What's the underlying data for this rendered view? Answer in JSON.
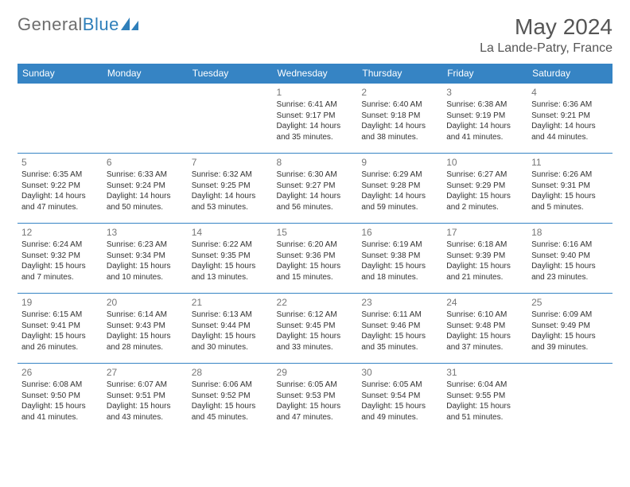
{
  "brand": {
    "part1": "General",
    "part2": "Blue"
  },
  "title": "May 2024",
  "location": "La Lande-Patry, France",
  "colors": {
    "header_bg": "#3684c4",
    "header_text": "#ffffff",
    "border": "#3684c4",
    "brand_gray": "#6d6d6d",
    "brand_blue": "#2f7fba",
    "text": "#333333",
    "title_color": "#555555"
  },
  "dayHeaders": [
    "Sunday",
    "Monday",
    "Tuesday",
    "Wednesday",
    "Thursday",
    "Friday",
    "Saturday"
  ],
  "weeks": [
    [
      null,
      null,
      null,
      {
        "n": "1",
        "sr": "6:41 AM",
        "ss": "9:17 PM",
        "dl": "14 hours and 35 minutes."
      },
      {
        "n": "2",
        "sr": "6:40 AM",
        "ss": "9:18 PM",
        "dl": "14 hours and 38 minutes."
      },
      {
        "n": "3",
        "sr": "6:38 AM",
        "ss": "9:19 PM",
        "dl": "14 hours and 41 minutes."
      },
      {
        "n": "4",
        "sr": "6:36 AM",
        "ss": "9:21 PM",
        "dl": "14 hours and 44 minutes."
      }
    ],
    [
      {
        "n": "5",
        "sr": "6:35 AM",
        "ss": "9:22 PM",
        "dl": "14 hours and 47 minutes."
      },
      {
        "n": "6",
        "sr": "6:33 AM",
        "ss": "9:24 PM",
        "dl": "14 hours and 50 minutes."
      },
      {
        "n": "7",
        "sr": "6:32 AM",
        "ss": "9:25 PM",
        "dl": "14 hours and 53 minutes."
      },
      {
        "n": "8",
        "sr": "6:30 AM",
        "ss": "9:27 PM",
        "dl": "14 hours and 56 minutes."
      },
      {
        "n": "9",
        "sr": "6:29 AM",
        "ss": "9:28 PM",
        "dl": "14 hours and 59 minutes."
      },
      {
        "n": "10",
        "sr": "6:27 AM",
        "ss": "9:29 PM",
        "dl": "15 hours and 2 minutes."
      },
      {
        "n": "11",
        "sr": "6:26 AM",
        "ss": "9:31 PM",
        "dl": "15 hours and 5 minutes."
      }
    ],
    [
      {
        "n": "12",
        "sr": "6:24 AM",
        "ss": "9:32 PM",
        "dl": "15 hours and 7 minutes."
      },
      {
        "n": "13",
        "sr": "6:23 AM",
        "ss": "9:34 PM",
        "dl": "15 hours and 10 minutes."
      },
      {
        "n": "14",
        "sr": "6:22 AM",
        "ss": "9:35 PM",
        "dl": "15 hours and 13 minutes."
      },
      {
        "n": "15",
        "sr": "6:20 AM",
        "ss": "9:36 PM",
        "dl": "15 hours and 15 minutes."
      },
      {
        "n": "16",
        "sr": "6:19 AM",
        "ss": "9:38 PM",
        "dl": "15 hours and 18 minutes."
      },
      {
        "n": "17",
        "sr": "6:18 AM",
        "ss": "9:39 PM",
        "dl": "15 hours and 21 minutes."
      },
      {
        "n": "18",
        "sr": "6:16 AM",
        "ss": "9:40 PM",
        "dl": "15 hours and 23 minutes."
      }
    ],
    [
      {
        "n": "19",
        "sr": "6:15 AM",
        "ss": "9:41 PM",
        "dl": "15 hours and 26 minutes."
      },
      {
        "n": "20",
        "sr": "6:14 AM",
        "ss": "9:43 PM",
        "dl": "15 hours and 28 minutes."
      },
      {
        "n": "21",
        "sr": "6:13 AM",
        "ss": "9:44 PM",
        "dl": "15 hours and 30 minutes."
      },
      {
        "n": "22",
        "sr": "6:12 AM",
        "ss": "9:45 PM",
        "dl": "15 hours and 33 minutes."
      },
      {
        "n": "23",
        "sr": "6:11 AM",
        "ss": "9:46 PM",
        "dl": "15 hours and 35 minutes."
      },
      {
        "n": "24",
        "sr": "6:10 AM",
        "ss": "9:48 PM",
        "dl": "15 hours and 37 minutes."
      },
      {
        "n": "25",
        "sr": "6:09 AM",
        "ss": "9:49 PM",
        "dl": "15 hours and 39 minutes."
      }
    ],
    [
      {
        "n": "26",
        "sr": "6:08 AM",
        "ss": "9:50 PM",
        "dl": "15 hours and 41 minutes."
      },
      {
        "n": "27",
        "sr": "6:07 AM",
        "ss": "9:51 PM",
        "dl": "15 hours and 43 minutes."
      },
      {
        "n": "28",
        "sr": "6:06 AM",
        "ss": "9:52 PM",
        "dl": "15 hours and 45 minutes."
      },
      {
        "n": "29",
        "sr": "6:05 AM",
        "ss": "9:53 PM",
        "dl": "15 hours and 47 minutes."
      },
      {
        "n": "30",
        "sr": "6:05 AM",
        "ss": "9:54 PM",
        "dl": "15 hours and 49 minutes."
      },
      {
        "n": "31",
        "sr": "6:04 AM",
        "ss": "9:55 PM",
        "dl": "15 hours and 51 minutes."
      },
      null
    ]
  ],
  "labels": {
    "sunrise": "Sunrise: ",
    "sunset": "Sunset: ",
    "daylight": "Daylight: "
  }
}
